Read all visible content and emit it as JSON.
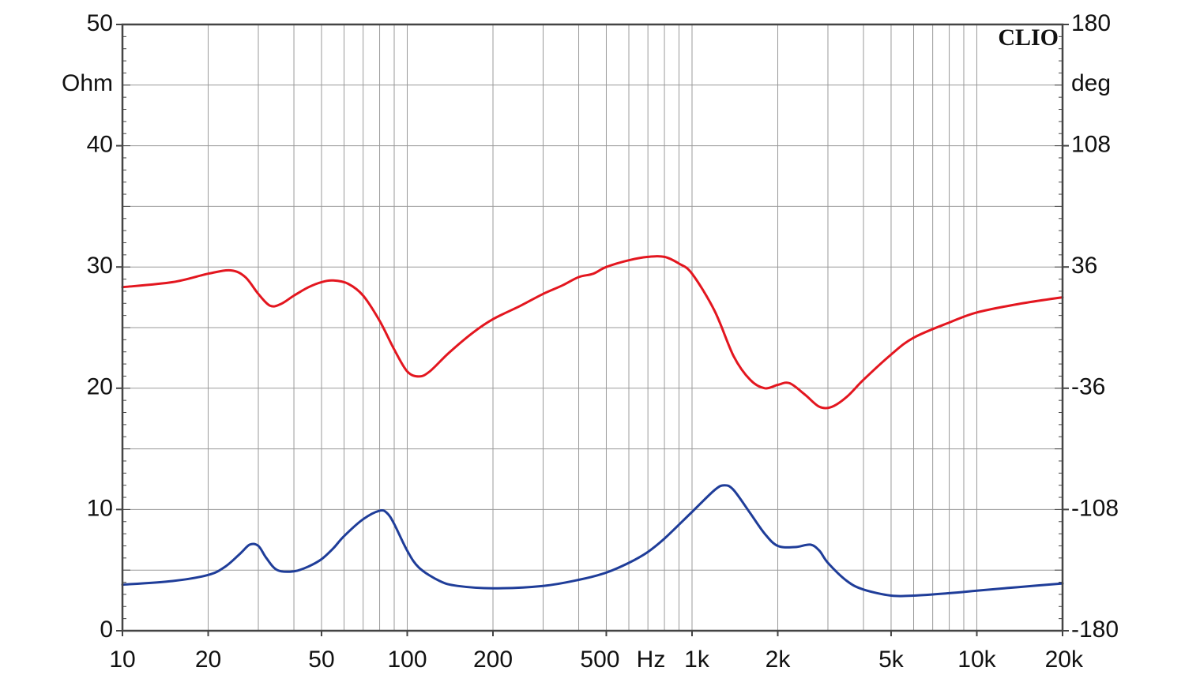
{
  "chart_data": {
    "type": "line",
    "brand": "CLIO",
    "x_axis": {
      "scale": "log",
      "range": [
        10,
        20000
      ],
      "unit_label": "Hz",
      "tick_values": [
        10,
        20,
        50,
        100,
        200,
        500,
        1000,
        2000,
        5000,
        10000,
        20000
      ],
      "tick_labels": [
        "10",
        "20",
        "50",
        "100",
        "200",
        "500",
        "1k",
        "2k",
        "5k",
        "10k",
        "20k"
      ]
    },
    "y_left": {
      "unit_label": "Ohm",
      "range": [
        0,
        50
      ],
      "tick_values": [
        0,
        10,
        20,
        30,
        40,
        50
      ],
      "tick_labels": [
        "0",
        "10",
        "20",
        "30",
        "40",
        "50"
      ]
    },
    "y_right": {
      "unit_label": "deg",
      "range": [
        -180,
        180
      ],
      "tick_values": [
        -180,
        -108,
        -36,
        36,
        108,
        180
      ],
      "tick_labels": [
        "-180",
        "-108",
        "-36",
        "36",
        "108",
        "180"
      ]
    },
    "grid": true,
    "series": [
      {
        "color": "#e3161f",
        "axis": "right",
        "x": [
          10,
          15,
          20,
          24,
          27,
          30,
          33,
          36,
          40,
          45,
          50,
          55,
          62,
          70,
          80,
          90,
          100,
          110,
          120,
          140,
          170,
          200,
          250,
          300,
          350,
          400,
          450,
          500,
          600,
          700,
          800,
          900,
          1000,
          1200,
          1400,
          1600,
          1800,
          2000,
          2200,
          2500,
          2800,
          3100,
          3500,
          4000,
          5000,
          6000,
          8000,
          10000,
          14000,
          20000
        ],
        "values": [
          24,
          27,
          32,
          34,
          30,
          20,
          13,
          14,
          19,
          24,
          27,
          28,
          26,
          19,
          4,
          -13,
          -26,
          -29,
          -26,
          -15,
          -3,
          5,
          13,
          20,
          25,
          30,
          32,
          36,
          40,
          42,
          42,
          38,
          32,
          10,
          -17,
          -31,
          -36,
          -34,
          -33,
          -40,
          -47,
          -47,
          -41,
          -31,
          -16,
          -6,
          3,
          9,
          14,
          18
        ]
      },
      {
        "color": "#1f3d99",
        "axis": "left",
        "x": [
          10,
          15,
          20,
          23,
          26,
          28,
          30,
          32,
          35,
          40,
          45,
          50,
          55,
          60,
          70,
          80,
          85,
          90,
          100,
          110,
          130,
          150,
          200,
          300,
          400,
          500,
          600,
          700,
          800,
          1000,
          1200,
          1300,
          1400,
          1600,
          1800,
          2000,
          2300,
          2600,
          2800,
          3000,
          3500,
          4000,
          5000,
          6000,
          8000,
          10000,
          14000,
          20000
        ],
        "values": [
          3.8,
          4.1,
          4.6,
          5.3,
          6.4,
          7.1,
          7.0,
          6.0,
          5.0,
          4.9,
          5.3,
          5.9,
          6.8,
          7.8,
          9.2,
          9.9,
          9.7,
          8.8,
          6.6,
          5.2,
          4.1,
          3.7,
          3.5,
          3.7,
          4.2,
          4.8,
          5.6,
          6.5,
          7.6,
          9.8,
          11.6,
          12.0,
          11.6,
          9.7,
          8.0,
          7.0,
          6.9,
          7.1,
          6.6,
          5.6,
          4.1,
          3.4,
          2.9,
          2.9,
          3.1,
          3.3,
          3.6,
          3.9
        ]
      }
    ]
  }
}
